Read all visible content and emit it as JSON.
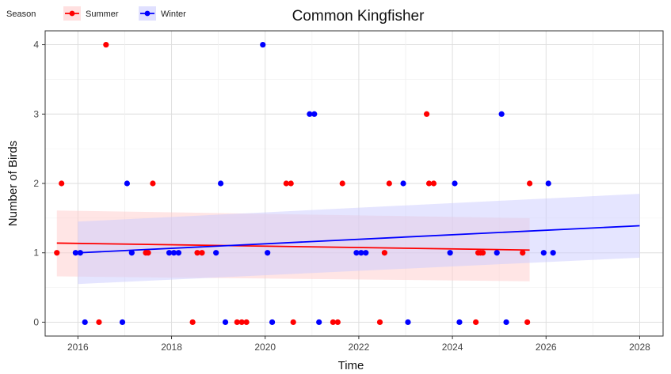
{
  "chart_data": {
    "type": "scatter",
    "title": "Common Kingfisher",
    "xlabel": "Time",
    "ylabel": "Number of Birds",
    "xlim": [
      2015.3,
      2028.5
    ],
    "ylim": [
      -0.2,
      4.2
    ],
    "x_ticks": [
      2016,
      2018,
      2020,
      2022,
      2024,
      2026,
      2028
    ],
    "x_tick_labels": [
      "2016",
      "2018",
      "2020",
      "2022",
      "2024",
      "2026",
      "2028"
    ],
    "y_ticks": [
      0,
      1,
      2,
      3,
      4
    ],
    "y_tick_labels": [
      "0",
      "1",
      "2",
      "3",
      "4"
    ],
    "grid": true,
    "legend": {
      "title": "Season",
      "position": "top-left",
      "entries": [
        "Summer",
        "Winter"
      ]
    },
    "series": [
      {
        "name": "Summer",
        "color": "#ff0000",
        "band_color": "#ffcccc",
        "points": [
          [
            2015.55,
            1
          ],
          [
            2015.65,
            2
          ],
          [
            2016.45,
            0
          ],
          [
            2016.6,
            4
          ],
          [
            2017.45,
            1
          ],
          [
            2017.5,
            1
          ],
          [
            2017.6,
            2
          ],
          [
            2018.45,
            0
          ],
          [
            2018.55,
            1
          ],
          [
            2018.65,
            1
          ],
          [
            2019.4,
            0
          ],
          [
            2019.5,
            0
          ],
          [
            2019.6,
            0
          ],
          [
            2020.45,
            2
          ],
          [
            2020.55,
            2
          ],
          [
            2020.6,
            0
          ],
          [
            2021.45,
            0
          ],
          [
            2021.55,
            0
          ],
          [
            2021.65,
            2
          ],
          [
            2022.45,
            0
          ],
          [
            2022.55,
            1
          ],
          [
            2022.65,
            2
          ],
          [
            2023.45,
            3
          ],
          [
            2023.5,
            2
          ],
          [
            2023.6,
            2
          ],
          [
            2024.5,
            0
          ],
          [
            2024.55,
            1
          ],
          [
            2024.6,
            1
          ],
          [
            2024.65,
            1
          ],
          [
            2025.5,
            1
          ],
          [
            2025.6,
            0
          ],
          [
            2025.65,
            2
          ]
        ],
        "trend": {
          "x": [
            2015.55,
            2025.65
          ],
          "y": [
            1.14,
            1.04
          ]
        },
        "ci": {
          "x": [
            2015.55,
            2025.65
          ],
          "lower": [
            0.66,
            0.59
          ],
          "upper": [
            1.61,
            1.5
          ]
        }
      },
      {
        "name": "Winter",
        "color": "#0000ff",
        "band_color": "#ccccff",
        "points": [
          [
            2015.95,
            1
          ],
          [
            2016.05,
            1
          ],
          [
            2016.15,
            0
          ],
          [
            2016.95,
            0
          ],
          [
            2017.05,
            2
          ],
          [
            2017.15,
            1
          ],
          [
            2017.95,
            1
          ],
          [
            2018.05,
            1
          ],
          [
            2018.15,
            1
          ],
          [
            2018.95,
            1
          ],
          [
            2019.05,
            2
          ],
          [
            2019.15,
            0
          ],
          [
            2019.95,
            4
          ],
          [
            2020.05,
            1
          ],
          [
            2020.15,
            0
          ],
          [
            2020.95,
            3
          ],
          [
            2021.05,
            3
          ],
          [
            2021.15,
            0
          ],
          [
            2021.95,
            1
          ],
          [
            2022.05,
            1
          ],
          [
            2022.15,
            1
          ],
          [
            2022.95,
            2
          ],
          [
            2023.05,
            0
          ],
          [
            2023.95,
            1
          ],
          [
            2024.05,
            2
          ],
          [
            2024.15,
            0
          ],
          [
            2024.95,
            1
          ],
          [
            2025.05,
            3
          ],
          [
            2025.15,
            0
          ],
          [
            2025.95,
            1
          ],
          [
            2026.05,
            2
          ],
          [
            2026.15,
            1
          ]
        ],
        "trend": {
          "x": [
            2016.0,
            2028.0
          ],
          "y": [
            1.0,
            1.39
          ]
        },
        "ci": {
          "x": [
            2016.0,
            2028.0
          ],
          "lower": [
            0.55,
            0.93
          ],
          "upper": [
            1.45,
            1.85
          ]
        }
      }
    ]
  }
}
